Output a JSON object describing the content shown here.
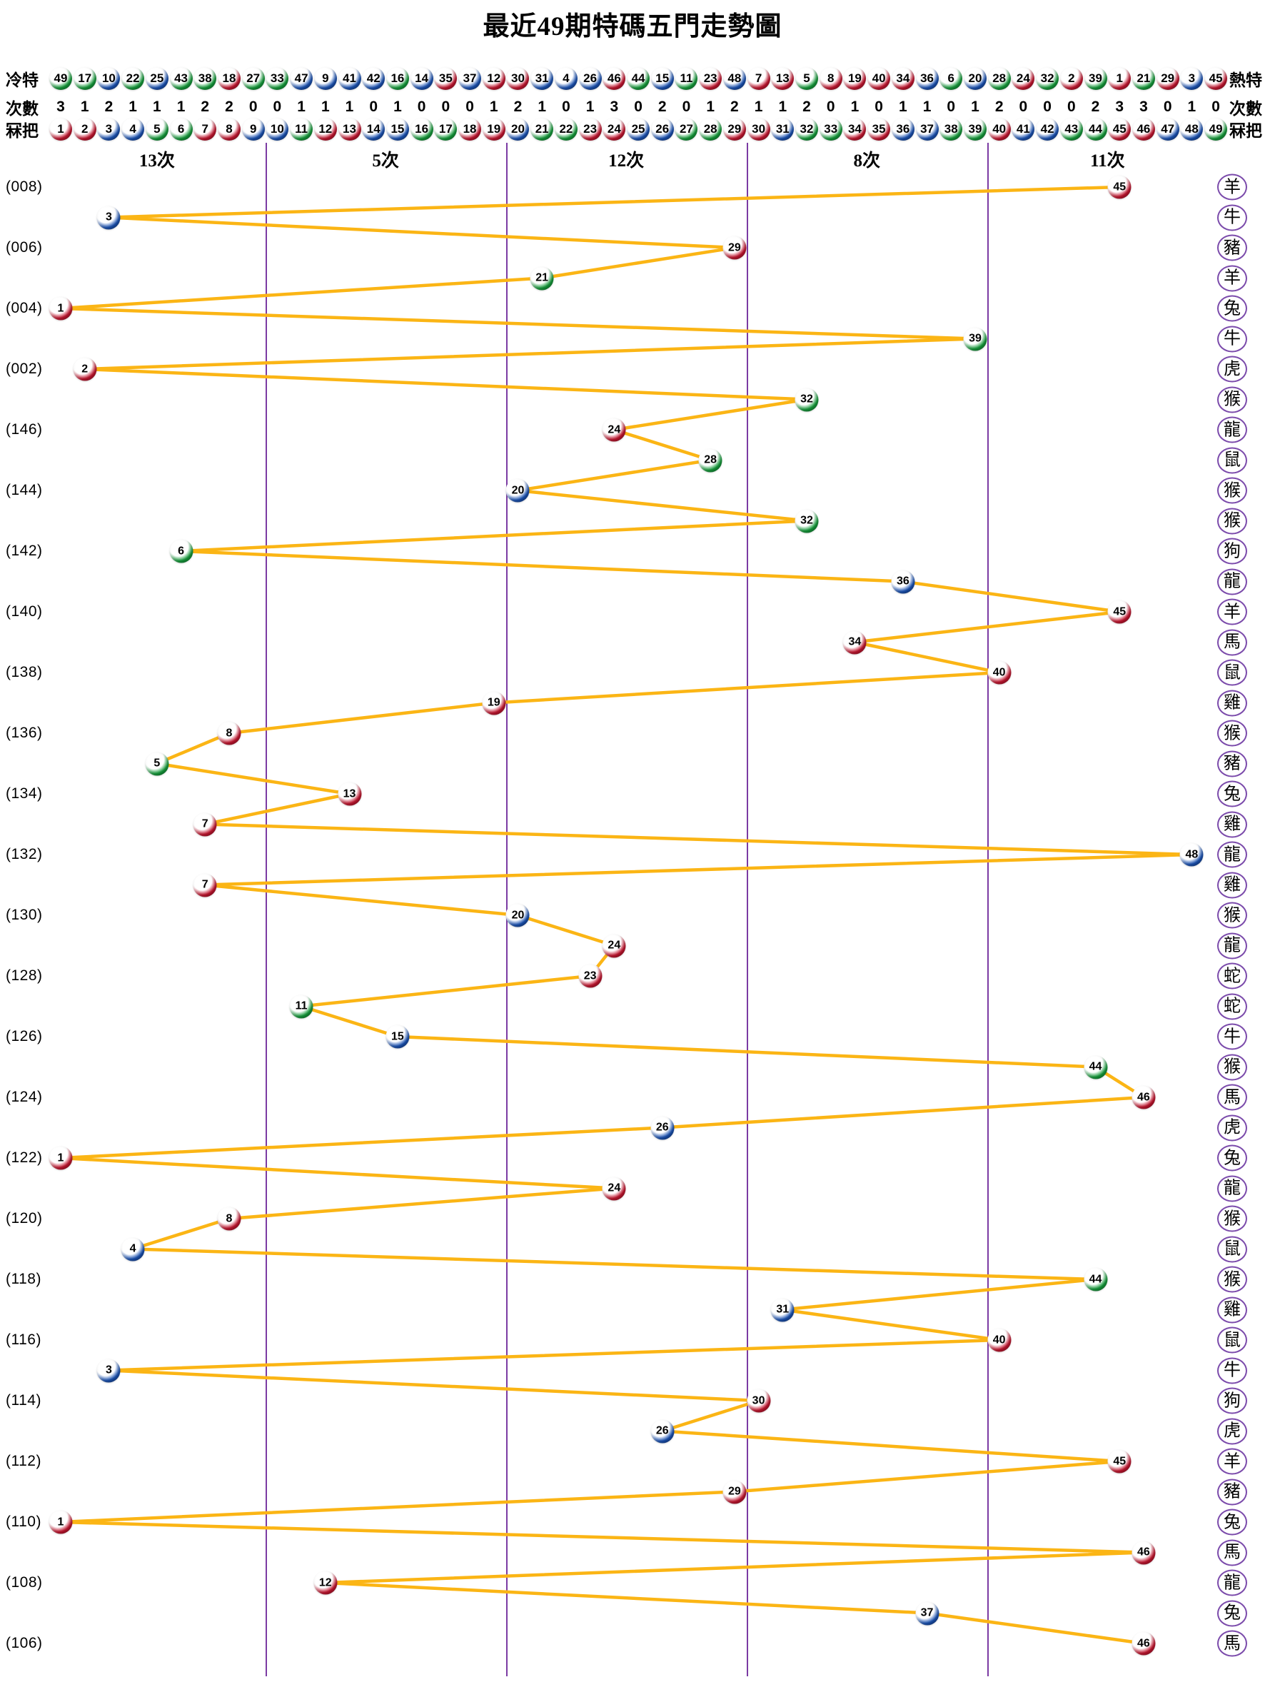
{
  "title": "最近49期特碼五門走勢圖",
  "header": {
    "cold": {
      "left_label": "冷特",
      "right_label": "熱特",
      "balls": [
        49,
        17,
        10,
        22,
        25,
        43,
        38,
        18,
        27,
        33,
        47,
        9,
        41,
        42,
        16,
        14,
        35,
        37,
        12,
        30,
        31,
        4,
        26,
        46,
        44,
        15,
        11,
        23,
        48,
        7,
        13,
        5,
        8,
        19,
        40,
        34,
        36,
        6,
        20,
        28,
        24,
        32,
        2,
        39,
        1,
        21,
        29,
        3,
        45
      ]
    },
    "counts": {
      "left_label": "次數",
      "right_label": "次數",
      "values": [
        3,
        1,
        2,
        1,
        1,
        1,
        2,
        2,
        0,
        0,
        1,
        1,
        1,
        0,
        1,
        0,
        0,
        0,
        1,
        2,
        1,
        0,
        1,
        3,
        0,
        2,
        0,
        1,
        2,
        1,
        1,
        2,
        0,
        1,
        0,
        1,
        1,
        0,
        1,
        2,
        0,
        0,
        0,
        2,
        3,
        3,
        0,
        1,
        0
      ]
    },
    "numbers": {
      "left_label": "冧把",
      "right_label": "冧把",
      "balls": [
        1,
        2,
        3,
        4,
        5,
        6,
        7,
        8,
        9,
        10,
        11,
        12,
        13,
        14,
        15,
        16,
        17,
        18,
        19,
        20,
        21,
        22,
        23,
        24,
        25,
        26,
        27,
        28,
        29,
        30,
        31,
        32,
        33,
        34,
        35,
        36,
        37,
        38,
        39,
        40,
        41,
        42,
        43,
        44,
        45,
        46,
        47,
        48,
        49
      ]
    }
  },
  "sections": [
    "13次",
    "5次",
    "12次",
    "8次",
    "11次"
  ],
  "chart_data": {
    "type": "line",
    "title": "最近49期特碼五門走勢圖",
    "x_axis": "特碼號碼 1-49",
    "door_ranges": [
      "1-9",
      "10-19",
      "20-29",
      "30-39",
      "40-49"
    ],
    "door_counts": [
      13,
      5,
      12,
      8,
      11
    ],
    "rows": [
      {
        "period": "(008)",
        "number": 45,
        "zodiac": "羊"
      },
      {
        "period": "",
        "number": 3,
        "zodiac": "牛"
      },
      {
        "period": "(006)",
        "number": 29,
        "zodiac": "豬"
      },
      {
        "period": "",
        "number": 21,
        "zodiac": "羊"
      },
      {
        "period": "(004)",
        "number": 1,
        "zodiac": "兔"
      },
      {
        "period": "",
        "number": 39,
        "zodiac": "牛"
      },
      {
        "period": "(002)",
        "number": 2,
        "zodiac": "虎"
      },
      {
        "period": "",
        "number": 32,
        "zodiac": "猴"
      },
      {
        "period": "(146)",
        "number": 24,
        "zodiac": "龍"
      },
      {
        "period": "",
        "number": 28,
        "zodiac": "鼠"
      },
      {
        "period": "(144)",
        "number": 20,
        "zodiac": "猴"
      },
      {
        "period": "",
        "number": 32,
        "zodiac": "猴"
      },
      {
        "period": "(142)",
        "number": 6,
        "zodiac": "狗"
      },
      {
        "period": "",
        "number": 36,
        "zodiac": "龍"
      },
      {
        "period": "(140)",
        "number": 45,
        "zodiac": "羊"
      },
      {
        "period": "",
        "number": 34,
        "zodiac": "馬"
      },
      {
        "period": "(138)",
        "number": 40,
        "zodiac": "鼠"
      },
      {
        "period": "",
        "number": 19,
        "zodiac": "雞"
      },
      {
        "period": "(136)",
        "number": 8,
        "zodiac": "猴"
      },
      {
        "period": "",
        "number": 5,
        "zodiac": "豬"
      },
      {
        "period": "(134)",
        "number": 13,
        "zodiac": "兔"
      },
      {
        "period": "",
        "number": 7,
        "zodiac": "雞"
      },
      {
        "period": "(132)",
        "number": 48,
        "zodiac": "龍"
      },
      {
        "period": "",
        "number": 7,
        "zodiac": "雞"
      },
      {
        "period": "(130)",
        "number": 20,
        "zodiac": "猴"
      },
      {
        "period": "",
        "number": 24,
        "zodiac": "龍"
      },
      {
        "period": "(128)",
        "number": 23,
        "zodiac": "蛇"
      },
      {
        "period": "",
        "number": 11,
        "zodiac": "蛇"
      },
      {
        "period": "(126)",
        "number": 15,
        "zodiac": "牛"
      },
      {
        "period": "",
        "number": 44,
        "zodiac": "猴"
      },
      {
        "period": "(124)",
        "number": 46,
        "zodiac": "馬"
      },
      {
        "period": "",
        "number": 26,
        "zodiac": "虎"
      },
      {
        "period": "(122)",
        "number": 1,
        "zodiac": "兔"
      },
      {
        "period": "",
        "number": 24,
        "zodiac": "龍"
      },
      {
        "period": "(120)",
        "number": 8,
        "zodiac": "猴"
      },
      {
        "period": "",
        "number": 4,
        "zodiac": "鼠"
      },
      {
        "period": "(118)",
        "number": 44,
        "zodiac": "猴"
      },
      {
        "period": "",
        "number": 31,
        "zodiac": "雞"
      },
      {
        "period": "(116)",
        "number": 40,
        "zodiac": "鼠"
      },
      {
        "period": "",
        "number": 3,
        "zodiac": "牛"
      },
      {
        "period": "(114)",
        "number": 30,
        "zodiac": "狗"
      },
      {
        "period": "",
        "number": 26,
        "zodiac": "虎"
      },
      {
        "period": "(112)",
        "number": 45,
        "zodiac": "羊"
      },
      {
        "period": "",
        "number": 29,
        "zodiac": "豬"
      },
      {
        "period": "(110)",
        "number": 1,
        "zodiac": "兔"
      },
      {
        "period": "",
        "number": 46,
        "zodiac": "馬"
      },
      {
        "period": "(108)",
        "number": 12,
        "zodiac": "龍"
      },
      {
        "period": "",
        "number": 37,
        "zodiac": "兔"
      },
      {
        "period": "(106)",
        "number": 46,
        "zodiac": "馬"
      }
    ]
  },
  "colors": {
    "line": "#FBB515",
    "divider": "#7B3BA3",
    "zodiac_border": "#7B4BAB",
    "ball_red": "#C81731",
    "ball_blue": "#1C55B8",
    "ball_green": "#17A03D",
    "red_numbers": [
      1,
      2,
      7,
      8,
      12,
      13,
      18,
      19,
      23,
      24,
      29,
      30,
      34,
      35,
      40,
      45,
      46
    ],
    "blue_numbers": [
      3,
      4,
      9,
      10,
      14,
      15,
      20,
      25,
      26,
      31,
      36,
      37,
      41,
      42,
      47,
      48
    ],
    "green_numbers": [
      5,
      6,
      11,
      16,
      17,
      21,
      22,
      27,
      28,
      32,
      33,
      38,
      39,
      43,
      44,
      49
    ]
  }
}
